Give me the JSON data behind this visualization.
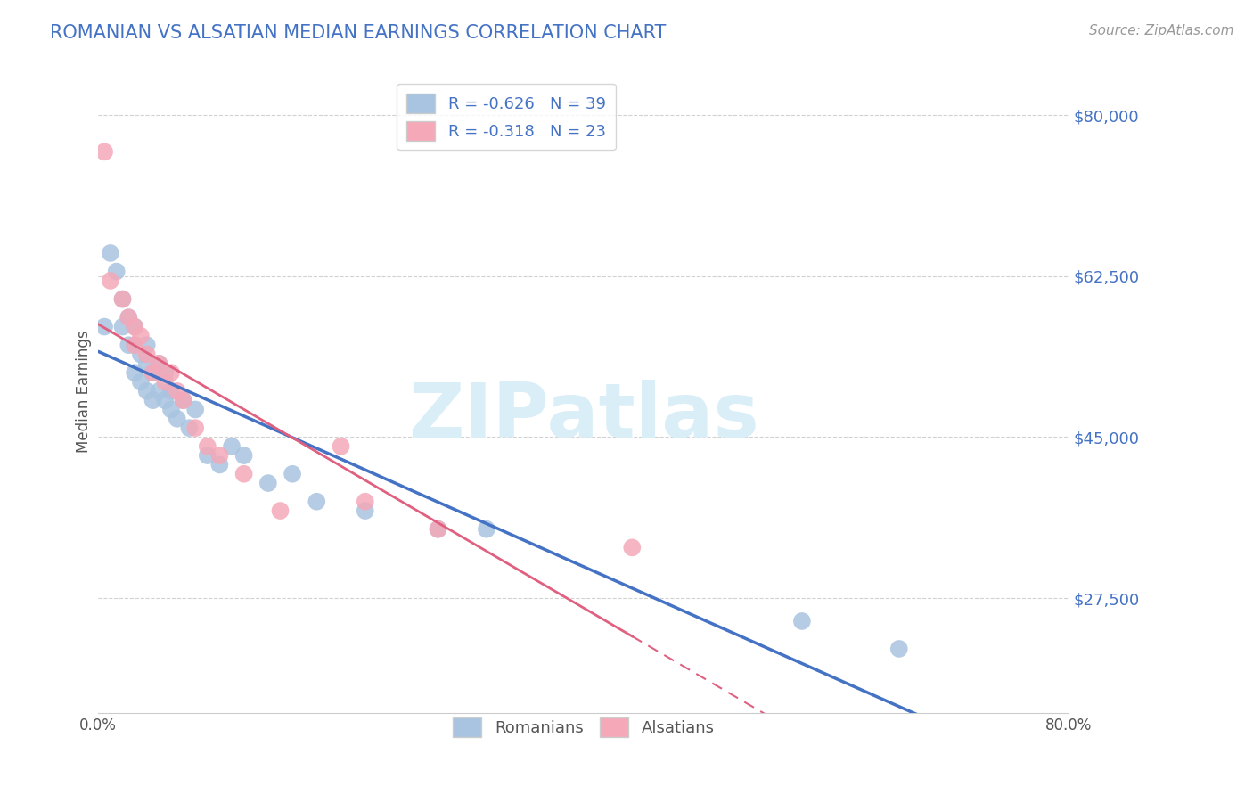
{
  "title": "ROMANIAN VS ALSATIAN MEDIAN EARNINGS CORRELATION CHART",
  "source": "Source: ZipAtlas.com",
  "ylabel": "Median Earnings",
  "xlim": [
    0.0,
    0.8
  ],
  "ylim": [
    15000,
    85000
  ],
  "yticks": [
    27500,
    45000,
    62500,
    80000
  ],
  "ytick_labels": [
    "$27,500",
    "$45,000",
    "$62,500",
    "$80,000"
  ],
  "xticks": [
    0.0,
    0.1,
    0.2,
    0.3,
    0.4,
    0.5,
    0.6,
    0.7,
    0.8
  ],
  "xtick_labels": [
    "0.0%",
    "",
    "",
    "",
    "",
    "",
    "",
    "",
    "80.0%"
  ],
  "romanian_R": -0.626,
  "romanian_N": 39,
  "alsatian_R": -0.318,
  "alsatian_N": 23,
  "romanian_color": "#a8c4e0",
  "alsatian_color": "#f4a8b8",
  "romanian_line_color": "#4472c4",
  "alsatian_line_color": "#e06080",
  "background_color": "#ffffff",
  "grid_color": "#cccccc",
  "title_color": "#4472c4",
  "watermark": "ZIPatlas",
  "watermark_color": "#daeef8",
  "romanian_x": [
    0.005,
    0.01,
    0.015,
    0.02,
    0.02,
    0.025,
    0.025,
    0.03,
    0.03,
    0.03,
    0.035,
    0.035,
    0.04,
    0.04,
    0.04,
    0.045,
    0.045,
    0.05,
    0.05,
    0.055,
    0.055,
    0.06,
    0.06,
    0.065,
    0.07,
    0.075,
    0.08,
    0.09,
    0.1,
    0.11,
    0.12,
    0.14,
    0.16,
    0.18,
    0.22,
    0.28,
    0.32,
    0.58,
    0.66
  ],
  "romanian_y": [
    57000,
    65000,
    63000,
    60000,
    57000,
    58000,
    55000,
    57000,
    55000,
    52000,
    54000,
    51000,
    55000,
    53000,
    50000,
    52000,
    49000,
    53000,
    50000,
    52000,
    49000,
    50000,
    48000,
    47000,
    49000,
    46000,
    48000,
    43000,
    42000,
    44000,
    43000,
    40000,
    41000,
    38000,
    37000,
    35000,
    35000,
    25000,
    22000
  ],
  "alsatian_x": [
    0.005,
    0.01,
    0.02,
    0.025,
    0.03,
    0.03,
    0.035,
    0.04,
    0.045,
    0.05,
    0.055,
    0.06,
    0.065,
    0.07,
    0.08,
    0.09,
    0.1,
    0.12,
    0.15,
    0.2,
    0.22,
    0.28,
    0.44
  ],
  "alsatian_y": [
    76000,
    62000,
    60000,
    58000,
    57000,
    55000,
    56000,
    54000,
    52000,
    53000,
    51000,
    52000,
    50000,
    49000,
    46000,
    44000,
    43000,
    41000,
    37000,
    44000,
    38000,
    35000,
    33000
  ]
}
